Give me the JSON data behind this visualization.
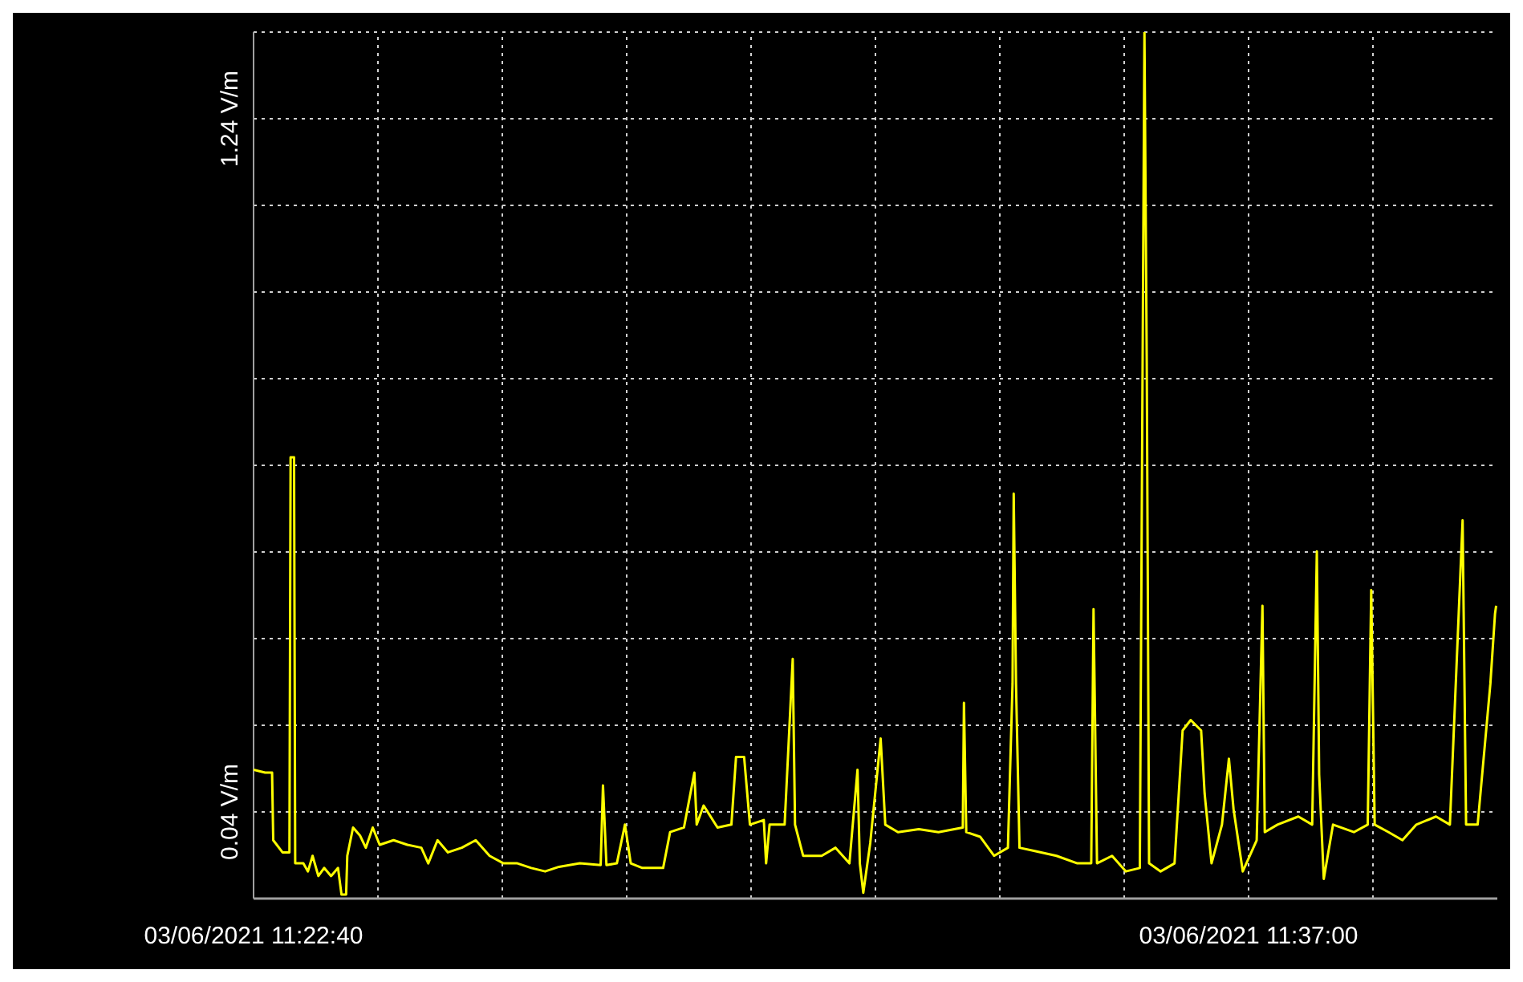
{
  "chart_data": {
    "type": "line",
    "grid": true,
    "xlim": [
      "2021-06-03T11:22:40",
      "2021-06-03T11:40:35"
    ],
    "ylim": [
      -0.11,
      1.39
    ],
    "xticks": [
      {
        "value": "2021-06-03T11:22:40",
        "label": "03/06/2021 11:22:40"
      },
      {
        "value": "2021-06-03T11:24:27.500",
        "label": null
      },
      {
        "value": "2021-06-03T11:26:15",
        "label": null
      },
      {
        "value": "2021-06-03T11:28:02.500",
        "label": null
      },
      {
        "value": "2021-06-03T11:29:50",
        "label": null
      },
      {
        "value": "2021-06-03T11:31:37.500",
        "label": null
      },
      {
        "value": "2021-06-03T11:33:25",
        "label": null
      },
      {
        "value": "2021-06-03T11:35:12.500",
        "label": null
      },
      {
        "value": "2021-06-03T11:37:00",
        "label": "03/06/2021 11:37:00"
      },
      {
        "value": "2021-06-03T11:38:47.500",
        "label": null
      }
    ],
    "yticks": [
      {
        "value": -0.11,
        "label": null
      },
      {
        "value": 0.04,
        "label": "0.04 V/m"
      },
      {
        "value": 0.19,
        "label": null
      },
      {
        "value": 0.34,
        "label": null
      },
      {
        "value": 0.49,
        "label": null
      },
      {
        "value": 0.64,
        "label": null
      },
      {
        "value": 0.79,
        "label": null
      },
      {
        "value": 0.94,
        "label": null
      },
      {
        "value": 1.09,
        "label": null
      },
      {
        "value": 1.24,
        "label": "1.24 V/m"
      },
      {
        "value": 1.39,
        "label": null
      }
    ],
    "series": [
      {
        "color": "#ffff00",
        "x": [
          "2021-06-03T11:22:40",
          "2021-06-03T11:22:50",
          "2021-06-03T11:22:56",
          "2021-06-03T11:22:57",
          "2021-06-03T11:23:05",
          "2021-06-03T11:23:11",
          "2021-06-03T11:23:12",
          "2021-06-03T11:23:15",
          "2021-06-03T11:23:16",
          "2021-06-03T11:23:23",
          "2021-06-03T11:23:27",
          "2021-06-03T11:23:31",
          "2021-06-03T11:23:36",
          "2021-06-03T11:23:41",
          "2021-06-03T11:23:47",
          "2021-06-03T11:23:53",
          "2021-06-03T11:23:56",
          "2021-06-03T11:24:00",
          "2021-06-03T11:24:01",
          "2021-06-03T11:24:06",
          "2021-06-03T11:24:12",
          "2021-06-03T11:24:17",
          "2021-06-03T11:24:23",
          "2021-06-03T11:24:29",
          "2021-06-03T11:24:41",
          "2021-06-03T11:24:53",
          "2021-06-03T11:25:05",
          "2021-06-03T11:25:11",
          "2021-06-03T11:25:19",
          "2021-06-03T11:25:28",
          "2021-06-03T11:25:40",
          "2021-06-03T11:25:52",
          "2021-06-03T11:26:04",
          "2021-06-03T11:26:16",
          "2021-06-03T11:26:28",
          "2021-06-03T11:26:40",
          "2021-06-03T11:26:52",
          "2021-06-03T11:27:04",
          "2021-06-03T11:27:22",
          "2021-06-03T11:27:40",
          "2021-06-03T11:27:42",
          "2021-06-03T11:27:45",
          "2021-06-03T11:27:54",
          "2021-06-03T11:28:01",
          "2021-06-03T11:28:06",
          "2021-06-03T11:28:16",
          "2021-06-03T11:28:34",
          "2021-06-03T11:28:40",
          "2021-06-03T11:28:52",
          "2021-06-03T11:29:01",
          "2021-06-03T11:29:03",
          "2021-06-03T11:29:09",
          "2021-06-03T11:29:21",
          "2021-06-03T11:29:33",
          "2021-06-03T11:29:37",
          "2021-06-03T11:29:44",
          "2021-06-03T11:29:49",
          "2021-06-03T11:30:01",
          "2021-06-03T11:30:03",
          "2021-06-03T11:30:06",
          "2021-06-03T11:30:19",
          "2021-06-03T11:30:22",
          "2021-06-03T11:30:26",
          "2021-06-03T11:30:28",
          "2021-06-03T11:30:35",
          "2021-06-03T11:30:51",
          "2021-06-03T11:31:03",
          "2021-06-03T11:31:15",
          "2021-06-03T11:31:22",
          "2021-06-03T11:31:24",
          "2021-06-03T11:31:27",
          "2021-06-03T11:31:33",
          "2021-06-03T11:31:42",
          "2021-06-03T11:31:46",
          "2021-06-03T11:31:57",
          "2021-06-03T11:32:15",
          "2021-06-03T11:32:32",
          "2021-06-03T11:32:53",
          "2021-06-03T11:32:54",
          "2021-06-03T11:32:56",
          "2021-06-03T11:33:08",
          "2021-06-03T11:33:20",
          "2021-06-03T11:33:32",
          "2021-06-03T11:33:36",
          "2021-06-03T11:33:37",
          "2021-06-03T11:33:39",
          "2021-06-03T11:33:42",
          "2021-06-03T11:33:56",
          "2021-06-03T11:34:14",
          "2021-06-03T11:34:32",
          "2021-06-03T11:34:44",
          "2021-06-03T11:34:46",
          "2021-06-03T11:34:49",
          "2021-06-03T11:35:02",
          "2021-06-03T11:35:14",
          "2021-06-03T11:35:26",
          "2021-06-03T11:35:30",
          "2021-06-03T11:35:32",
          "2021-06-03T11:35:34",
          "2021-06-03T11:35:44",
          "2021-06-03T11:35:56",
          "2021-06-03T11:36:03",
          "2021-06-03T11:36:10",
          "2021-06-03T11:36:19",
          "2021-06-03T11:36:22",
          "2021-06-03T11:36:28",
          "2021-06-03T11:36:37",
          "2021-06-03T11:36:43",
          "2021-06-03T11:36:47",
          "2021-06-03T11:36:55",
          "2021-06-03T11:37:07",
          "2021-06-03T11:37:12",
          "2021-06-03T11:37:14",
          "2021-06-03T11:37:25",
          "2021-06-03T11:37:43",
          "2021-06-03T11:37:55",
          "2021-06-03T11:37:59",
          "2021-06-03T11:38:01",
          "2021-06-03T11:38:05",
          "2021-06-03T11:38:13",
          "2021-06-03T11:38:31",
          "2021-06-03T11:38:43",
          "2021-06-03T11:38:46",
          "2021-06-03T11:38:49",
          "2021-06-03T11:39:01",
          "2021-06-03T11:39:13",
          "2021-06-03T11:39:25",
          "2021-06-03T11:39:42",
          "2021-06-03T11:39:54",
          "2021-06-03T11:40:05",
          "2021-06-03T11:40:08",
          "2021-06-03T11:40:18",
          "2021-06-03T11:40:29",
          "2021-06-03T11:40:33",
          "2021-06-03T11:40:34"
        ],
        "values": [
          0.113,
          0.108,
          0.108,
          -0.009,
          -0.03,
          -0.03,
          0.654,
          0.654,
          -0.049,
          -0.049,
          -0.063,
          -0.036,
          -0.071,
          -0.057,
          -0.071,
          -0.057,
          -0.103,
          -0.103,
          -0.036,
          0.013,
          -0.001,
          -0.022,
          0.013,
          -0.017,
          -0.009,
          -0.017,
          -0.022,
          -0.049,
          -0.009,
          -0.03,
          -0.022,
          -0.009,
          -0.036,
          -0.049,
          -0.049,
          -0.057,
          -0.063,
          -0.055,
          -0.049,
          -0.052,
          0.086,
          -0.052,
          -0.049,
          0.018,
          -0.049,
          -0.057,
          -0.057,
          0.005,
          0.013,
          0.108,
          0.018,
          0.051,
          0.013,
          0.018,
          0.135,
          0.135,
          0.018,
          0.026,
          -0.049,
          0.018,
          0.018,
          0.14,
          0.305,
          0.018,
          -0.036,
          -0.036,
          -0.022,
          -0.049,
          0.113,
          -0.049,
          -0.1,
          -0.014,
          0.167,
          0.018,
          0.005,
          0.01,
          0.005,
          0.013,
          0.229,
          0.005,
          -0.003,
          -0.036,
          -0.022,
          0.262,
          0.591,
          0.262,
          -0.022,
          -0.028,
          -0.036,
          -0.049,
          -0.049,
          0.391,
          -0.049,
          -0.036,
          -0.063,
          -0.057,
          1.39,
          0.816,
          -0.049,
          -0.063,
          -0.049,
          0.181,
          0.199,
          0.181,
          0.072,
          -0.049,
          0.018,
          0.132,
          0.045,
          -0.063,
          -0.009,
          0.397,
          0.005,
          0.018,
          0.032,
          0.018,
          0.491,
          0.105,
          -0.076,
          0.018,
          0.005,
          0.018,
          0.424,
          0.018,
          0.005,
          -0.009,
          0.018,
          0.032,
          0.018,
          0.545,
          0.018,
          0.018,
          0.262,
          0.383,
          0.397
        ]
      }
    ]
  }
}
